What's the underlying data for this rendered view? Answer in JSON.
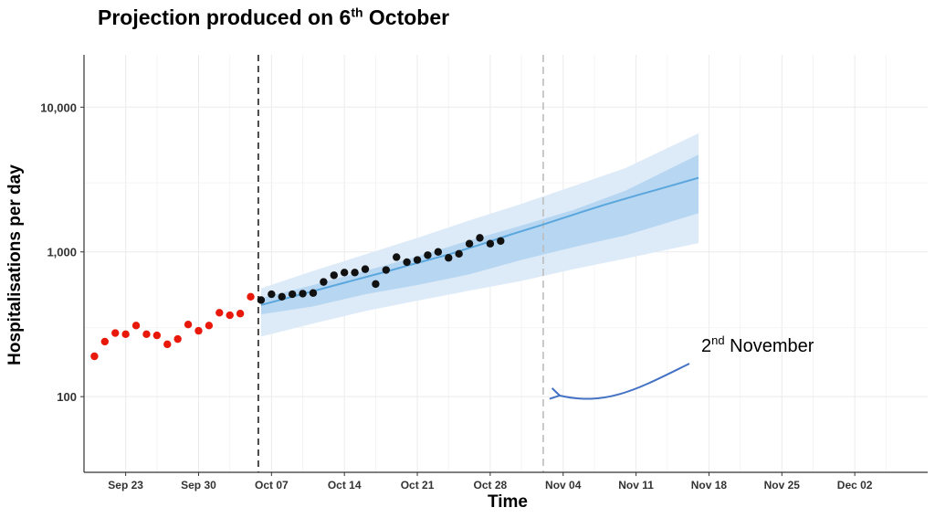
{
  "chart_data": {
    "type": "scatter",
    "title": "Projection produced on 6",
    "title_sup": "th",
    "title_tail": " October",
    "xlabel": "Time",
    "ylabel": "Hospitalisations per day",
    "y_scale": "log",
    "ylim": [
      30,
      23000
    ],
    "xlim": [
      "2020-09-19",
      "2020-12-09"
    ],
    "x_ticks": [
      {
        "date": "2020-09-23",
        "label": "Sep 23"
      },
      {
        "date": "2020-09-30",
        "label": "Sep 30"
      },
      {
        "date": "2020-10-07",
        "label": "Oct 07"
      },
      {
        "date": "2020-10-14",
        "label": "Oct 14"
      },
      {
        "date": "2020-10-21",
        "label": "Oct 21"
      },
      {
        "date": "2020-10-28",
        "label": "Oct 28"
      },
      {
        "date": "2020-11-04",
        "label": "Nov 04"
      },
      {
        "date": "2020-11-11",
        "label": "Nov 11"
      },
      {
        "date": "2020-11-18",
        "label": "Nov 18"
      },
      {
        "date": "2020-11-25",
        "label": "Nov 25"
      },
      {
        "date": "2020-12-02",
        "label": "Dec 02"
      }
    ],
    "y_ticks": [
      {
        "value": 100,
        "label": "100"
      },
      {
        "value": 1000,
        "label": "1,000"
      },
      {
        "value": 10000,
        "label": "10,000"
      }
    ],
    "grid": true,
    "projection_start": "2020-10-06",
    "marker_date": "2020-11-02",
    "annotation": {
      "text": "2",
      "sup": "nd",
      "tail": " November"
    },
    "series": [
      {
        "kind": "points",
        "color": "#e8190b",
        "points": [
          [
            "2020-09-20",
            190
          ],
          [
            "2020-09-21",
            240
          ],
          [
            "2020-09-22",
            275
          ],
          [
            "2020-09-23",
            270
          ],
          [
            "2020-09-24",
            310
          ],
          [
            "2020-09-25",
            270
          ],
          [
            "2020-09-26",
            265
          ],
          [
            "2020-09-27",
            230
          ],
          [
            "2020-09-28",
            250
          ],
          [
            "2020-09-29",
            315
          ],
          [
            "2020-09-30",
            285
          ],
          [
            "2020-10-01",
            310
          ],
          [
            "2020-10-02",
            380
          ],
          [
            "2020-10-03",
            365
          ],
          [
            "2020-10-04",
            375
          ],
          [
            "2020-10-05",
            490
          ]
        ]
      },
      {
        "kind": "points",
        "color": "#111111",
        "points": [
          [
            "2020-10-06",
            465
          ],
          [
            "2020-10-07",
            510
          ],
          [
            "2020-10-08",
            490
          ],
          [
            "2020-10-09",
            510
          ],
          [
            "2020-10-10",
            515
          ],
          [
            "2020-10-11",
            520
          ],
          [
            "2020-10-12",
            620
          ],
          [
            "2020-10-13",
            690
          ],
          [
            "2020-10-14",
            720
          ],
          [
            "2020-10-15",
            720
          ],
          [
            "2020-10-16",
            760
          ],
          [
            "2020-10-17",
            600
          ],
          [
            "2020-10-18",
            750
          ],
          [
            "2020-10-19",
            920
          ],
          [
            "2020-10-20",
            850
          ],
          [
            "2020-10-21",
            880
          ],
          [
            "2020-10-22",
            950
          ],
          [
            "2020-10-23",
            1000
          ],
          [
            "2020-10-24",
            910
          ],
          [
            "2020-10-25",
            970
          ],
          [
            "2020-10-26",
            1140
          ],
          [
            "2020-10-27",
            1250
          ],
          [
            "2020-10-28",
            1140
          ],
          [
            "2020-10-29",
            1190
          ]
        ]
      },
      {
        "kind": "line",
        "color": "#5aa7de",
        "points": [
          [
            "2020-10-06",
            430
          ],
          [
            "2020-10-09",
            490
          ],
          [
            "2020-10-12",
            560
          ],
          [
            "2020-10-15",
            640
          ],
          [
            "2020-10-18",
            730
          ],
          [
            "2020-10-21",
            840
          ],
          [
            "2020-10-24",
            960
          ],
          [
            "2020-10-27",
            1120
          ],
          [
            "2020-10-30",
            1320
          ],
          [
            "2020-11-02",
            1540
          ],
          [
            "2020-11-05",
            1810
          ],
          [
            "2020-11-08",
            2120
          ],
          [
            "2020-11-11",
            2450
          ],
          [
            "2020-11-14",
            2820
          ],
          [
            "2020-11-17",
            3250
          ]
        ]
      }
    ],
    "bands": [
      {
        "name": "outer interval",
        "color": "#ddebf8",
        "dates": [
          "2020-10-06",
          "2020-10-11",
          "2020-10-16",
          "2020-10-21",
          "2020-10-26",
          "2020-10-31",
          "2020-11-05",
          "2020-11-10",
          "2020-11-17"
        ],
        "lower": [
          260,
          320,
          390,
          460,
          540,
          630,
          760,
          900,
          1150
        ],
        "upper": [
          560,
          740,
          960,
          1250,
          1650,
          2150,
          2850,
          3800,
          6600
        ]
      },
      {
        "name": "inner interval",
        "color": "#b7d6f1",
        "dates": [
          "2020-10-06",
          "2020-10-11",
          "2020-10-16",
          "2020-10-21",
          "2020-10-26",
          "2020-10-31",
          "2020-11-05",
          "2020-11-10",
          "2020-11-17"
        ],
        "lower": [
          370,
          420,
          510,
          590,
          700,
          880,
          1080,
          1300,
          1850
        ],
        "upper": [
          480,
          590,
          740,
          930,
          1200,
          1520,
          1950,
          2650,
          4700
        ]
      }
    ]
  }
}
